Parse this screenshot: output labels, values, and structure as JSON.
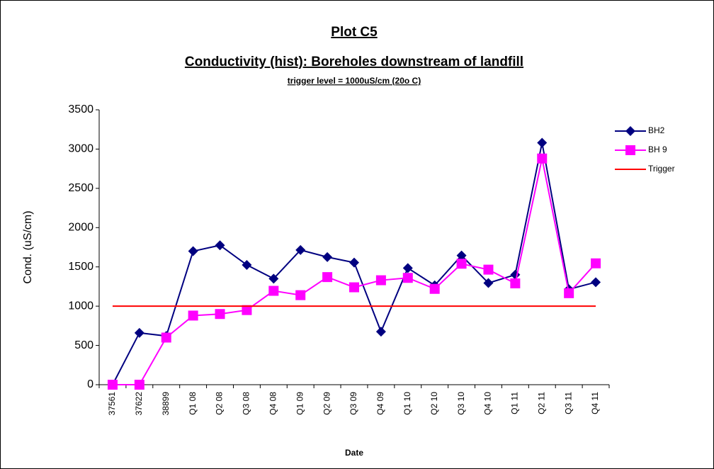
{
  "chart_data": {
    "type": "line",
    "title": "Plot C5",
    "subtitle": "Conductivity (hist): Boreholes downstream of landfill",
    "annotation": "trigger level = 1000uS/cm (20o C)",
    "x_label": "Date",
    "y_label": "Cond. (uS/cm)",
    "categories": [
      "37561",
      "37622",
      "38899",
      "Q1 08",
      "Q2 08",
      "Q3 08",
      "Q4 08",
      "Q1 09",
      "Q2 09",
      "Q3 09",
      "Q4 09",
      "Q1 10",
      "Q2 10",
      "Q3 10",
      "Q4 10",
      "Q1 11",
      "Q2 11",
      "Q3 11",
      "Q4 11"
    ],
    "series": [
      {
        "name": "BH2",
        "color": "#000080",
        "marker": "diamond",
        "values": [
          0,
          660,
          620,
          1700,
          1775,
          1525,
          1350,
          1715,
          1625,
          1555,
          675,
          1485,
          1265,
          1645,
          1295,
          1400,
          3080,
          1215,
          1305
        ]
      },
      {
        "name": "BH 9",
        "color": "#ff00ff",
        "marker": "square",
        "values": [
          0,
          0,
          600,
          880,
          900,
          950,
          1195,
          1140,
          1370,
          1240,
          1330,
          1360,
          1220,
          1540,
          1465,
          1290,
          2880,
          1165,
          1545
        ]
      },
      {
        "name": "Trigger",
        "color": "#ff0000",
        "marker": null,
        "values": [
          1000,
          1000,
          1000,
          1000,
          1000,
          1000,
          1000,
          1000,
          1000,
          1000,
          1000,
          1000,
          1000,
          1000,
          1000,
          1000,
          1000,
          1000,
          1000
        ]
      }
    ],
    "ylim": [
      0,
      3500
    ],
    "yticks": [
      0,
      500,
      1000,
      1500,
      2000,
      2500,
      3000,
      3500
    ],
    "grid": false,
    "legend": "right"
  }
}
